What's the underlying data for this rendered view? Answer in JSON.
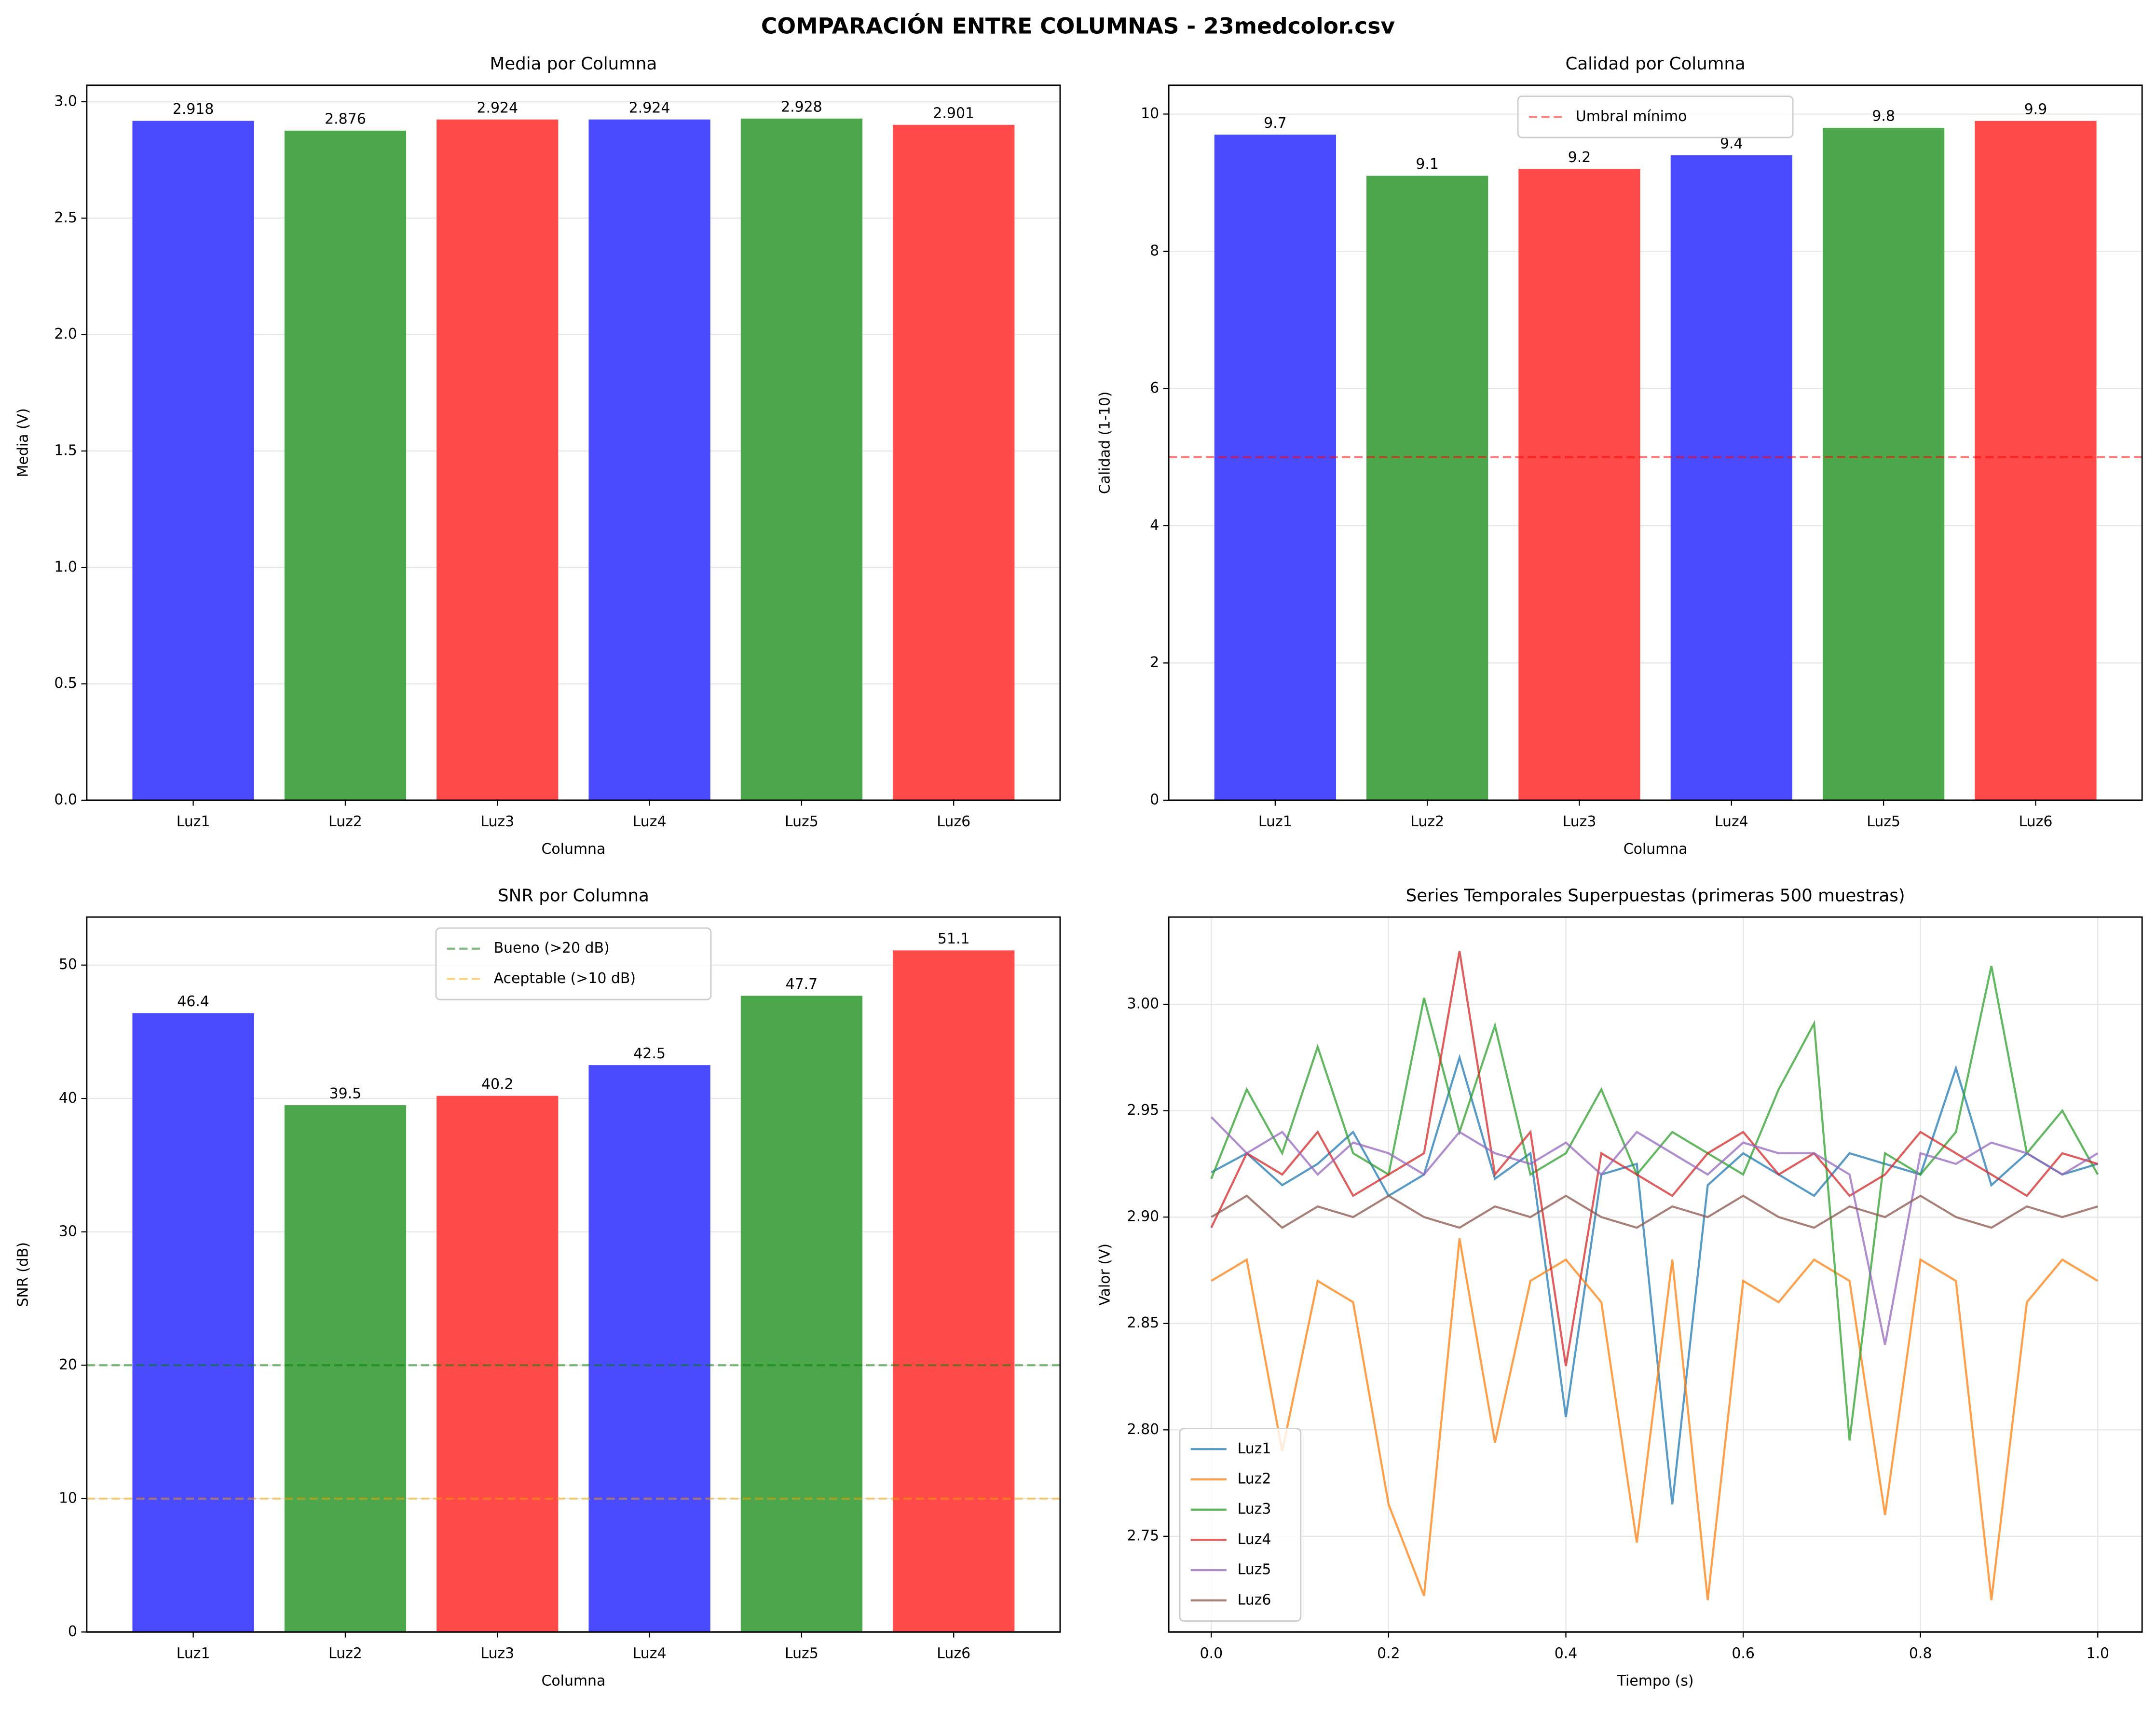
{
  "title": "COMPARACIÓN ENTRE COLUMNAS - 23medcolor.csv",
  "chart_data": [
    {
      "type": "bar",
      "title": "Media por Columna",
      "x_label": "Columna",
      "y_label": "Media (V)",
      "categories": [
        "Luz1",
        "Luz2",
        "Luz3",
        "Luz4",
        "Luz5",
        "Luz6"
      ],
      "values": [
        2.918,
        2.876,
        2.924,
        2.924,
        2.928,
        2.901
      ],
      "colors": [
        "#4a4aff",
        "#4ca64c",
        "#ff4a4a",
        "#4a4aff",
        "#4ca64c",
        "#ff4a4a"
      ],
      "ylim": [
        0,
        3.071
      ],
      "yticks": [
        {
          "value": 0,
          "label": "0.0"
        },
        0.5,
        {
          "value": 1,
          "label": "1.0"
        },
        1.5,
        {
          "value": 2,
          "label": "2.0"
        },
        2.5,
        {
          "value": 3,
          "label": "3.0"
        }
      ],
      "grid": true
    },
    {
      "type": "bar",
      "title": "Calidad por Columna",
      "x_label": "Columna",
      "y_label": "Calidad (1-10)",
      "categories": [
        "Luz1",
        "Luz2",
        "Luz3",
        "Luz4",
        "Luz5",
        "Luz6"
      ],
      "values": [
        9.7,
        9.1,
        9.2,
        9.4,
        9.8,
        9.9
      ],
      "colors": [
        "#4a4aff",
        "#4ca64c",
        "#ff4a4a",
        "#4a4aff",
        "#4ca64c",
        "#ff4a4a"
      ],
      "ylim": [
        0,
        10.42
      ],
      "yticks": [
        0,
        2,
        4,
        6,
        8,
        10
      ],
      "hlines": [
        {
          "name": "Umbral mínimo",
          "value": 5,
          "color": "#ff0000"
        }
      ],
      "legend": "upper center",
      "grid": true
    },
    {
      "type": "bar",
      "title": "SNR por Columna",
      "x_label": "Columna",
      "y_label": "SNR (dB)",
      "categories": [
        "Luz1",
        "Luz2",
        "Luz3",
        "Luz4",
        "Luz5",
        "Luz6"
      ],
      "values": [
        46.4,
        39.5,
        40.2,
        42.5,
        47.7,
        51.1
      ],
      "colors": [
        "#4a4aff",
        "#4ca64c",
        "#ff4a4a",
        "#4a4aff",
        "#4ca64c",
        "#ff4a4a"
      ],
      "ylim": [
        0,
        53.6
      ],
      "yticks": [
        0,
        10,
        20,
        30,
        40,
        50
      ],
      "hlines": [
        {
          "name": "Bueno (>20 dB)",
          "value": 20,
          "color": "#008000"
        },
        {
          "name": "Aceptable (>10 dB)",
          "value": 10,
          "color": "#ffa500"
        }
      ],
      "legend": "upper center",
      "grid": true
    },
    {
      "type": "line",
      "title": "Series Temporales Superpuestas (primeras 500 muestras)",
      "x_label": "Tiempo (s)",
      "y_label": "Valor (V)",
      "x": [
        0,
        0.04,
        0.08,
        0.12,
        0.16,
        0.2,
        0.24,
        0.28,
        0.32,
        0.36,
        0.4,
        0.44,
        0.48,
        0.52,
        0.56,
        0.6,
        0.64,
        0.68,
        0.72,
        0.76,
        0.8,
        0.84,
        0.88,
        0.92,
        0.96,
        1
      ],
      "series": [
        {
          "name": "Luz1",
          "color": "#1f77b4",
          "values": [
            2.921,
            2.93,
            2.915,
            2.925,
            2.94,
            2.91,
            2.92,
            2.975,
            2.918,
            2.93,
            2.806,
            2.92,
            2.925,
            2.765,
            2.915,
            2.93,
            2.92,
            2.91,
            2.93,
            2.925,
            2.92,
            2.97,
            2.915,
            2.93,
            2.92,
            2.925
          ]
        },
        {
          "name": "Luz2",
          "color": "#ff7f0e",
          "values": [
            2.87,
            2.88,
            2.79,
            2.87,
            2.86,
            2.765,
            2.722,
            2.89,
            2.794,
            2.87,
            2.88,
            2.86,
            2.747,
            2.88,
            2.72,
            2.87,
            2.86,
            2.88,
            2.87,
            2.76,
            2.88,
            2.87,
            2.72,
            2.86,
            2.88,
            2.87
          ]
        },
        {
          "name": "Luz3",
          "color": "#2ca02c",
          "values": [
            2.918,
            2.96,
            2.93,
            2.98,
            2.93,
            2.92,
            3.003,
            2.94,
            2.99,
            2.92,
            2.93,
            2.96,
            2.92,
            2.94,
            2.93,
            2.92,
            2.96,
            2.991,
            2.795,
            2.93,
            2.92,
            2.94,
            3.018,
            2.93,
            2.95,
            2.92
          ]
        },
        {
          "name": "Luz4",
          "color": "#d62728",
          "values": [
            2.895,
            2.93,
            2.92,
            2.94,
            2.91,
            2.92,
            2.93,
            3.025,
            2.92,
            2.94,
            2.83,
            2.93,
            2.92,
            2.91,
            2.93,
            2.94,
            2.92,
            2.93,
            2.91,
            2.92,
            2.94,
            2.93,
            2.92,
            2.91,
            2.93,
            2.925
          ]
        },
        {
          "name": "Luz5",
          "color": "#9467bd",
          "values": [
            2.947,
            2.93,
            2.94,
            2.92,
            2.935,
            2.93,
            2.92,
            2.94,
            2.93,
            2.925,
            2.935,
            2.92,
            2.94,
            2.93,
            2.92,
            2.935,
            2.93,
            2.93,
            2.92,
            2.84,
            2.93,
            2.925,
            2.935,
            2.93,
            2.92,
            2.93
          ]
        },
        {
          "name": "Luz6",
          "color": "#8c564b",
          "values": [
            2.9,
            2.91,
            2.895,
            2.905,
            2.9,
            2.91,
            2.9,
            2.895,
            2.905,
            2.9,
            2.91,
            2.9,
            2.895,
            2.905,
            2.9,
            2.91,
            2.9,
            2.895,
            2.905,
            2.9,
            2.91,
            2.9,
            2.895,
            2.905,
            2.9,
            2.905
          ]
        }
      ],
      "xlim": [
        -0.048,
        1.05
      ],
      "xticks": [
        {
          "value": 0,
          "label": "0.0"
        },
        0.2,
        0.4,
        0.6,
        0.8,
        {
          "value": 1,
          "label": "1.0"
        }
      ],
      "ylim": [
        2.705,
        3.041
      ],
      "yticks": [
        2.75,
        {
          "value": 2.8,
          "label": "2.80"
        },
        2.85,
        {
          "value": 2.9,
          "label": "2.90"
        },
        2.95,
        {
          "value": 3,
          "label": "3.00"
        }
      ],
      "legend": "lower left",
      "grid": true
    }
  ]
}
